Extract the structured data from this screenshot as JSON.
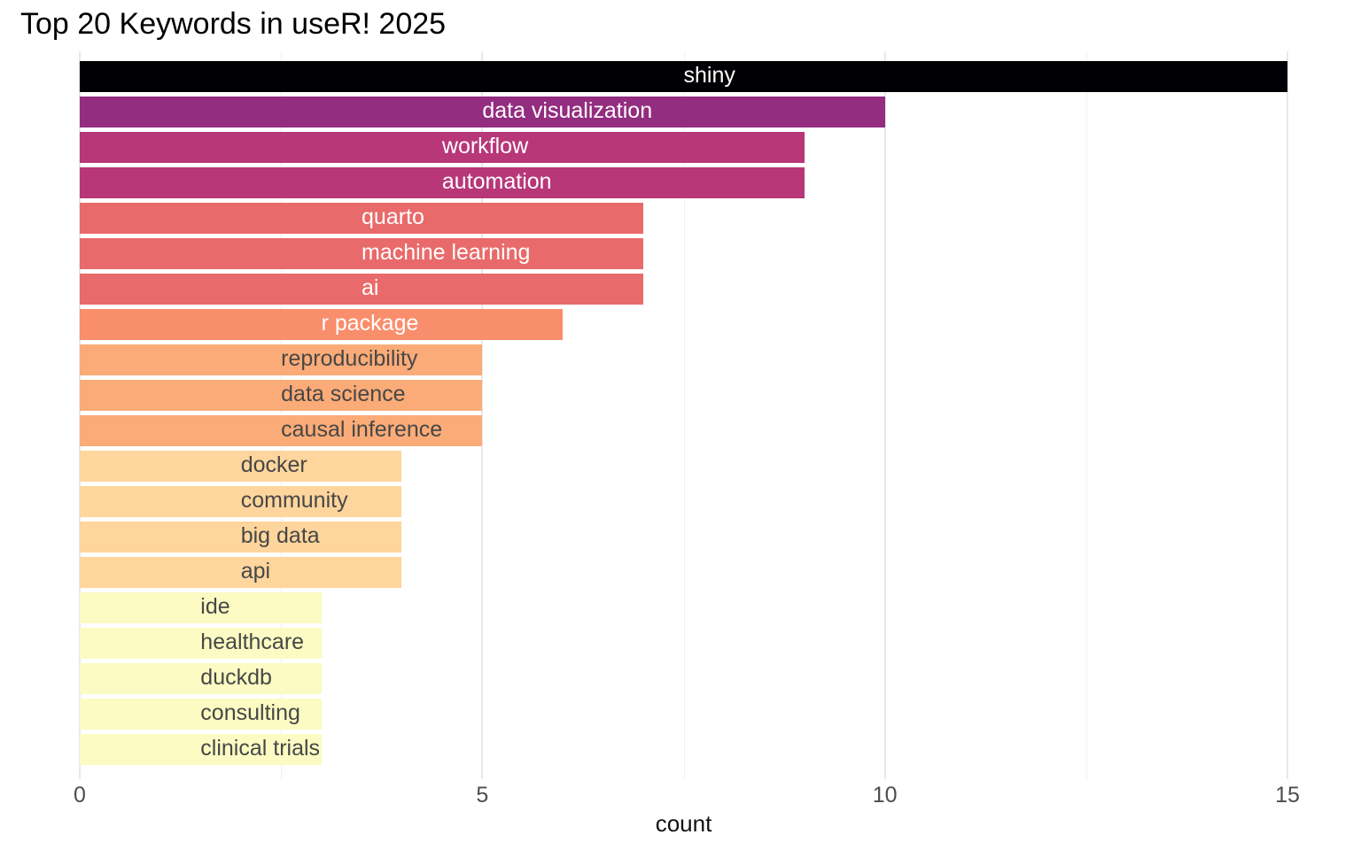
{
  "title": "Top 20 Keywords in useR! 2025",
  "chart_data": {
    "type": "bar",
    "orientation": "horizontal",
    "title": "Top 20 Keywords in useR! 2025",
    "xlabel": "count",
    "ylabel": "",
    "xlim": [
      0,
      15
    ],
    "x_ticks": [
      {
        "label": "0",
        "value": 0
      },
      {
        "label": "5",
        "value": 5
      },
      {
        "label": "10",
        "value": 10
      },
      {
        "label": "15",
        "value": 15
      }
    ],
    "x_minor_gridlines": [
      2.5,
      7.5,
      12.5
    ],
    "grid": true,
    "legend": false,
    "palette": "magma reversed",
    "label_placement": "left-aligned starting at bar midpoint (x = value/2)",
    "bars": [
      {
        "label": "shiny",
        "value": 15,
        "color": "#000004",
        "label_color": "#FFFFFF"
      },
      {
        "label": "data visualization",
        "value": 10,
        "color": "#932D80",
        "label_color": "#FFFFFF"
      },
      {
        "label": "workflow",
        "value": 9,
        "color": "#B73779",
        "label_color": "#FFFFFF"
      },
      {
        "label": "automation",
        "value": 9,
        "color": "#B73779",
        "label_color": "#FFFFFF"
      },
      {
        "label": "quarto",
        "value": 7,
        "color": "#E96A6A",
        "label_color": "#FFFFFF"
      },
      {
        "label": "machine learning",
        "value": 7,
        "color": "#E96A6A",
        "label_color": "#FFFFFF"
      },
      {
        "label": "ai",
        "value": 7,
        "color": "#E96A6A",
        "label_color": "#FFFFFF"
      },
      {
        "label": "r package",
        "value": 6,
        "color": "#F98E6C",
        "label_color": "#FFFFFF"
      },
      {
        "label": "reproducibility",
        "value": 5,
        "color": "#FBAB77",
        "label_color": "#474747"
      },
      {
        "label": "data science",
        "value": 5,
        "color": "#FBAB77",
        "label_color": "#474747"
      },
      {
        "label": "causal inference",
        "value": 5,
        "color": "#FBAB77",
        "label_color": "#474747"
      },
      {
        "label": "docker",
        "value": 4,
        "color": "#FED59C",
        "label_color": "#474747"
      },
      {
        "label": "community",
        "value": 4,
        "color": "#FED59C",
        "label_color": "#474747"
      },
      {
        "label": "big data",
        "value": 4,
        "color": "#FED59C",
        "label_color": "#474747"
      },
      {
        "label": "api",
        "value": 4,
        "color": "#FED59C",
        "label_color": "#474747"
      },
      {
        "label": "ide",
        "value": 3,
        "color": "#FBFBC3",
        "label_color": "#474747"
      },
      {
        "label": "healthcare",
        "value": 3,
        "color": "#FBFBC3",
        "label_color": "#474747"
      },
      {
        "label": "duckdb",
        "value": 3,
        "color": "#FBFBC3",
        "label_color": "#474747"
      },
      {
        "label": "consulting",
        "value": 3,
        "color": "#FBFBC3",
        "label_color": "#474747"
      },
      {
        "label": "clinical trials",
        "value": 3,
        "color": "#FBFBC3",
        "label_color": "#474747"
      }
    ]
  },
  "colors": {
    "background": "#FFFFFF",
    "title_text": "#000000",
    "axis_tick_text": "#4D4D4D",
    "axis_title_text": "#111111",
    "grid_major": "#E8E8E8",
    "grid_minor": "#F0F0F0"
  }
}
